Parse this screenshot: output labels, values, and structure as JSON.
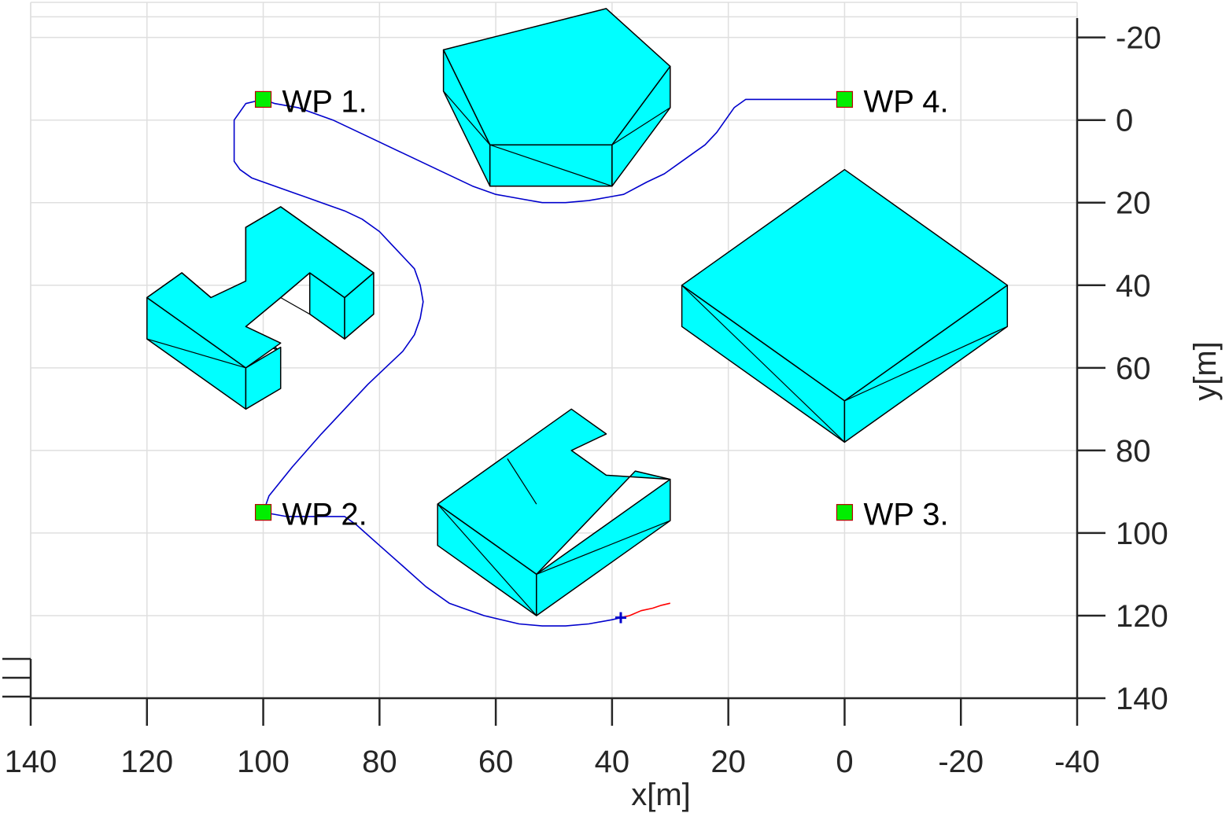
{
  "chart_data": {
    "type": "line",
    "title": "",
    "xlabel": "x[m]",
    "ylabel": "y[m]",
    "xlim": [
      140,
      -40
    ],
    "ylim": [
      140,
      -20
    ],
    "x_reversed": true,
    "y_reversed": true,
    "y_axis_location": "right",
    "grid": true,
    "xticks": [
      140,
      120,
      100,
      80,
      60,
      40,
      20,
      0,
      -20,
      -40
    ],
    "yticks": [
      -20,
      0,
      20,
      40,
      60,
      80,
      100,
      120,
      140
    ],
    "colors": {
      "obstacle_fill": "#00ffff",
      "obstacle_edge": "#000000",
      "path_flown": "#0000cc",
      "path_ahead": "#ff0000",
      "waypoint_fill": "#00ee00",
      "waypoint_edge": "#b80000",
      "grid": "#dfdfdf"
    },
    "waypoints": [
      {
        "label": "WP 1.",
        "x": 100,
        "y": -5
      },
      {
        "label": "WP 2.",
        "x": 100,
        "y": 95
      },
      {
        "label": "WP 3.",
        "x": 0,
        "y": 95
      },
      {
        "label": "WP 4.",
        "x": 0,
        "y": -5
      }
    ],
    "series": [
      {
        "kind": "path_flown",
        "points": [
          [
            0,
            -5
          ],
          [
            13,
            -5
          ],
          [
            17,
            -5
          ],
          [
            19,
            -3
          ],
          [
            20,
            -1
          ],
          [
            22,
            3
          ],
          [
            24,
            6
          ],
          [
            26,
            8
          ],
          [
            28,
            10
          ],
          [
            31,
            13
          ],
          [
            34,
            15
          ],
          [
            38,
            18
          ],
          [
            40,
            18.5
          ],
          [
            44,
            19.5
          ],
          [
            48,
            20
          ],
          [
            52,
            20
          ],
          [
            56,
            19
          ],
          [
            60,
            18
          ],
          [
            64,
            16
          ],
          [
            70,
            12
          ],
          [
            76,
            8
          ],
          [
            82,
            4
          ],
          [
            88,
            0
          ],
          [
            94,
            -3
          ],
          [
            98,
            -4
          ],
          [
            100,
            -5
          ],
          [
            103,
            -4
          ],
          [
            104,
            -2
          ],
          [
            105,
            0
          ],
          [
            105,
            4
          ],
          [
            105,
            8
          ],
          [
            105,
            10
          ],
          [
            104,
            12
          ],
          [
            102,
            14
          ],
          [
            98,
            16
          ],
          [
            94,
            18
          ],
          [
            90,
            20
          ],
          [
            86,
            22
          ],
          [
            83,
            24
          ],
          [
            80,
            27
          ],
          [
            78,
            30
          ],
          [
            76,
            33
          ],
          [
            74,
            36
          ],
          [
            73,
            40
          ],
          [
            72.5,
            44
          ],
          [
            73,
            48
          ],
          [
            74,
            52
          ],
          [
            76,
            56
          ],
          [
            79,
            60
          ],
          [
            82,
            64
          ],
          [
            86,
            70
          ],
          [
            90,
            76
          ],
          [
            95,
            84
          ],
          [
            99,
            91
          ],
          [
            100,
            95
          ],
          [
            96,
            96
          ],
          [
            92,
            96
          ],
          [
            88,
            96
          ],
          [
            86,
            96
          ],
          [
            84,
            98
          ],
          [
            80,
            103
          ],
          [
            76,
            108
          ],
          [
            72,
            113
          ],
          [
            68,
            117
          ],
          [
            62,
            120
          ],
          [
            56,
            122
          ],
          [
            52,
            122.5
          ],
          [
            48,
            122.5
          ],
          [
            44,
            122
          ],
          [
            40,
            121
          ],
          [
            38.5,
            120.5
          ]
        ]
      },
      {
        "kind": "path_ahead",
        "points": [
          [
            38.5,
            120.5
          ],
          [
            37,
            120
          ],
          [
            35,
            118.8
          ],
          [
            33,
            118.2
          ],
          [
            31.5,
            117.5
          ],
          [
            30,
            117
          ]
        ]
      }
    ],
    "vehicle": {
      "x": 38.5,
      "y": 120.5
    },
    "obstacles": [
      {
        "name": "pentagon-building",
        "faces": [
          [
            [
              69,
              -17
            ],
            [
              41,
              -27
            ],
            [
              30,
              -13
            ],
            [
              40,
              6
            ],
            [
              61,
              6
            ]
          ],
          [
            [
              69,
              -17
            ],
            [
              61,
              6
            ],
            [
              61,
              16
            ],
            [
              69,
              -7
            ]
          ],
          [
            [
              61,
              6
            ],
            [
              40,
              6
            ],
            [
              40,
              16
            ],
            [
              61,
              16
            ]
          ],
          [
            [
              40,
              6
            ],
            [
              30,
              -13
            ],
            [
              30,
              -3
            ],
            [
              40,
              16
            ]
          ]
        ],
        "diagonals": [
          [
            [
              69,
              -7
            ],
            [
              61,
              6
            ]
          ],
          [
            [
              61,
              6
            ],
            [
              40,
              16
            ]
          ],
          [
            [
              40,
              6
            ],
            [
              30,
              -3
            ]
          ]
        ]
      },
      {
        "name": "square-building",
        "faces": [
          [
            [
              0,
              12
            ],
            [
              28,
              40
            ],
            [
              0,
              68
            ],
            [
              -28,
              40
            ]
          ],
          [
            [
              28,
              40
            ],
            [
              0,
              68
            ],
            [
              0,
              78
            ],
            [
              28,
              50
            ]
          ],
          [
            [
              0,
              68
            ],
            [
              -28,
              40
            ],
            [
              -28,
              50
            ],
            [
              0,
              78
            ]
          ]
        ],
        "diagonals": [
          [
            [
              28,
              40
            ],
            [
              0,
              78
            ]
          ],
          [
            [
              0,
              68
            ],
            [
              -28,
              50
            ]
          ]
        ]
      },
      {
        "name": "h-building-left",
        "faces": [
          [
            [
              120,
              43
            ],
            [
              114,
              37
            ],
            [
              109,
              43
            ],
            [
              103,
              39
            ],
            [
              103,
              26
            ],
            [
              97,
              21
            ],
            [
              81,
              37
            ],
            [
              86,
              43
            ],
            [
              92,
              37
            ],
            [
              97,
              43
            ],
            [
              103,
              50
            ],
            [
              97,
              56
            ],
            [
              103,
              60
            ],
            [
              97,
              56
            ]
          ],
          [
            [
              120,
              43
            ],
            [
              103,
              60
            ],
            [
              103,
              70
            ],
            [
              120,
              53
            ]
          ],
          [
            [
              103,
              60
            ],
            [
              97,
              55
            ],
            [
              97,
              65
            ],
            [
              103,
              70
            ]
          ],
          [
            [
              92,
              37
            ],
            [
              86,
              43
            ],
            [
              86,
              53
            ],
            [
              92,
              47
            ]
          ],
          [
            [
              86,
              43
            ],
            [
              81,
              37
            ],
            [
              81,
              47
            ],
            [
              86,
              53
            ]
          ],
          [
            [
              103,
              26
            ],
            [
              98,
              32
            ],
            [
              98,
              36
            ],
            [
              103,
              36
            ]
          ]
        ],
        "top": [
          [
            120,
            43
          ],
          [
            114,
            37
          ],
          [
            109,
            43
          ],
          [
            103,
            39
          ],
          [
            103,
            26
          ],
          [
            97,
            21
          ],
          [
            81,
            37
          ],
          [
            86,
            43
          ],
          [
            92,
            37
          ],
          [
            97,
            43
          ],
          [
            103,
            50
          ],
          [
            97,
            54
          ],
          [
            103,
            60
          ]
        ],
        "diagonals": [
          [
            [
              120,
              53
            ],
            [
              103,
              60
            ]
          ],
          [
            [
              97,
              43
            ],
            [
              92,
              47
            ]
          ],
          [
            [
              86,
              53
            ],
            [
              81,
              47
            ]
          ]
        ]
      },
      {
        "name": "h-building-bottom",
        "faces": [
          [
            [
              70,
              93
            ],
            [
              64,
              87
            ],
            [
              47,
              70
            ],
            [
              41,
              76
            ],
            [
              47,
              80
            ],
            [
              41,
              86
            ],
            [
              30,
              87
            ],
            [
              36,
              85
            ],
            [
              53,
              110
            ],
            [
              70,
              93
            ]
          ],
          [
            [
              70,
              93
            ],
            [
              53,
              110
            ],
            [
              53,
              120
            ],
            [
              70,
              103
            ]
          ],
          [
            [
              53,
              110
            ],
            [
              30,
              87
            ],
            [
              30,
              97
            ],
            [
              53,
              120
            ]
          ]
        ],
        "diagonals": [
          [
            [
              70,
              93
            ],
            [
              53,
              120
            ]
          ],
          [
            [
              53,
              110
            ],
            [
              30,
              97
            ]
          ],
          [
            [
              58,
              82
            ],
            [
              53,
              93
            ]
          ]
        ]
      }
    ]
  }
}
